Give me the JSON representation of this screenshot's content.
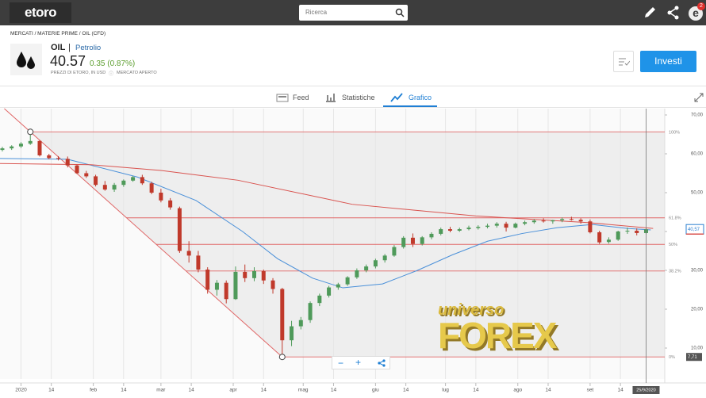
{
  "header": {
    "logo": "etoro",
    "search_placeholder": "Ricerca",
    "notification_count": "2",
    "avatar": "e"
  },
  "breadcrumb": "MERCATI / MATERIE PRIME / OIL (CFD)",
  "instrument": {
    "symbol": "OIL",
    "separator": "|",
    "name": "Petrolio",
    "price": "40.57",
    "change": "0.35 (0.87%)",
    "note": "PREZZI DI ETORO, IN USD",
    "status": "MERCATO APERTO",
    "invest_button": "Investi"
  },
  "tabs": [
    "Feed",
    "Statistiche",
    "Grafico"
  ],
  "zoom_controls": [
    "−",
    "+"
  ],
  "watermark": {
    "top": "universo",
    "bottom": "FOREX"
  },
  "chart_data": {
    "type": "candlestick",
    "up_color": "#4f9a5a",
    "down_color": "#c0392b",
    "xlim": [
      -9,
      276
    ],
    "ylim": [
      2.04,
      71.63
    ],
    "xticks": [
      {
        "value": 0,
        "label": "2020"
      },
      {
        "value": 13,
        "label": "14"
      },
      {
        "value": 31,
        "label": "feb"
      },
      {
        "value": 44,
        "label": "14"
      },
      {
        "value": 60,
        "label": "mar"
      },
      {
        "value": 73,
        "label": "14"
      },
      {
        "value": 91,
        "label": "apr"
      },
      {
        "value": 104,
        "label": "14"
      },
      {
        "value": 121,
        "label": "mag"
      },
      {
        "value": 134,
        "label": "14"
      },
      {
        "value": 152,
        "label": "giu"
      },
      {
        "value": 165,
        "label": "14"
      },
      {
        "value": 182,
        "label": "lug"
      },
      {
        "value": 195,
        "label": "14"
      },
      {
        "value": 213,
        "label": "ago"
      },
      {
        "value": 226,
        "label": "14"
      },
      {
        "value": 244,
        "label": "set"
      },
      {
        "value": 257,
        "label": "14"
      }
    ],
    "yticks": [
      {
        "value": 10,
        "label": "10,00"
      },
      {
        "value": 20,
        "label": "20,00"
      },
      {
        "value": 30,
        "label": "30,00"
      },
      {
        "value": 40,
        "label": "40,00"
      },
      {
        "value": 50,
        "label": "50,00"
      },
      {
        "value": 60,
        "label": "60,00"
      },
      {
        "value": 70,
        "label": "70,00"
      }
    ],
    "grid": true,
    "last_price": {
      "value": 40.57,
      "label": "40,57"
    },
    "cursor_label": "25/9/2020",
    "candles": [
      {
        "x": -8,
        "open": 61.0,
        "high": 61.8,
        "low": 60.6,
        "close": 61.4
      },
      {
        "x": -4,
        "open": 61.4,
        "high": 62.2,
        "low": 61.0,
        "close": 61.9
      },
      {
        "x": 0,
        "open": 61.9,
        "high": 63.0,
        "low": 61.5,
        "close": 62.6
      },
      {
        "x": 4,
        "open": 62.6,
        "high": 65.65,
        "low": 62.3,
        "close": 63.3
      },
      {
        "x": 8,
        "open": 63.3,
        "high": 63.5,
        "low": 59.3,
        "close": 59.6
      },
      {
        "x": 12,
        "open": 59.6,
        "high": 60.0,
        "low": 58.6,
        "close": 58.9
      },
      {
        "x": 16,
        "open": 58.9,
        "high": 59.4,
        "low": 58.3,
        "close": 58.7
      },
      {
        "x": 20,
        "open": 58.7,
        "high": 59.3,
        "low": 56.5,
        "close": 57.0
      },
      {
        "x": 24,
        "open": 57.0,
        "high": 57.2,
        "low": 54.8,
        "close": 55.0
      },
      {
        "x": 28,
        "open": 55.0,
        "high": 55.6,
        "low": 53.8,
        "close": 54.2
      },
      {
        "x": 32,
        "open": 54.2,
        "high": 54.6,
        "low": 51.6,
        "close": 52.0
      },
      {
        "x": 36,
        "open": 52.0,
        "high": 53.0,
        "low": 50.5,
        "close": 50.8
      },
      {
        "x": 40,
        "open": 50.8,
        "high": 52.5,
        "low": 50.2,
        "close": 52.0
      },
      {
        "x": 44,
        "open": 52.0,
        "high": 53.4,
        "low": 51.5,
        "close": 53.1
      },
      {
        "x": 48,
        "open": 53.1,
        "high": 54.3,
        "low": 52.8,
        "close": 54.0
      },
      {
        "x": 52,
        "open": 54.0,
        "high": 54.6,
        "low": 52.0,
        "close": 52.4
      },
      {
        "x": 56,
        "open": 52.4,
        "high": 52.8,
        "low": 49.6,
        "close": 50.0
      },
      {
        "x": 60,
        "open": 50.0,
        "high": 51.0,
        "low": 47.5,
        "close": 48.0
      },
      {
        "x": 64,
        "open": 48.0,
        "high": 48.6,
        "low": 45.6,
        "close": 46.2
      },
      {
        "x": 68,
        "open": 46.0,
        "high": 46.4,
        "low": 34.5,
        "close": 35.0
      },
      {
        "x": 72,
        "open": 35.0,
        "high": 37.5,
        "low": 32.0,
        "close": 33.8
      },
      {
        "x": 76,
        "open": 33.8,
        "high": 35.0,
        "low": 29.5,
        "close": 30.2
      },
      {
        "x": 80,
        "open": 30.2,
        "high": 30.8,
        "low": 24.0,
        "close": 25.0
      },
      {
        "x": 84,
        "open": 25.0,
        "high": 27.5,
        "low": 23.5,
        "close": 26.8
      },
      {
        "x": 88,
        "open": 26.8,
        "high": 27.4,
        "low": 21.5,
        "close": 22.6
      },
      {
        "x": 92,
        "open": 22.6,
        "high": 31.0,
        "low": 22.4,
        "close": 29.6
      },
      {
        "x": 96,
        "open": 29.6,
        "high": 31.5,
        "low": 27.0,
        "close": 28.0
      },
      {
        "x": 100,
        "open": 28.0,
        "high": 30.8,
        "low": 27.2,
        "close": 29.8
      },
      {
        "x": 104,
        "open": 29.8,
        "high": 30.2,
        "low": 26.5,
        "close": 27.4
      },
      {
        "x": 108,
        "open": 27.4,
        "high": 28.0,
        "low": 24.0,
        "close": 25.2
      },
      {
        "x": 112,
        "open": 25.2,
        "high": 25.5,
        "low": 7.71,
        "close": 12.0
      },
      {
        "x": 116,
        "open": 12.0,
        "high": 17.0,
        "low": 10.5,
        "close": 15.6
      },
      {
        "x": 120,
        "open": 15.6,
        "high": 18.0,
        "low": 14.8,
        "close": 17.2
      },
      {
        "x": 124,
        "open": 17.2,
        "high": 22.0,
        "low": 16.5,
        "close": 21.6
      },
      {
        "x": 128,
        "open": 21.6,
        "high": 24.0,
        "low": 20.8,
        "close": 23.5
      },
      {
        "x": 132,
        "open": 23.5,
        "high": 26.0,
        "low": 23.0,
        "close": 25.6
      },
      {
        "x": 136,
        "open": 25.6,
        "high": 26.8,
        "low": 25.0,
        "close": 26.4
      },
      {
        "x": 140,
        "open": 26.4,
        "high": 28.5,
        "low": 26.0,
        "close": 28.2
      },
      {
        "x": 144,
        "open": 28.2,
        "high": 30.5,
        "low": 27.8,
        "close": 30.0
      },
      {
        "x": 148,
        "open": 30.0,
        "high": 31.5,
        "low": 29.5,
        "close": 31.0
      },
      {
        "x": 152,
        "open": 31.0,
        "high": 33.0,
        "low": 30.5,
        "close": 32.6
      },
      {
        "x": 156,
        "open": 32.6,
        "high": 34.2,
        "low": 32.0,
        "close": 33.8
      },
      {
        "x": 160,
        "open": 33.8,
        "high": 36.5,
        "low": 33.5,
        "close": 36.0
      },
      {
        "x": 164,
        "open": 36.0,
        "high": 38.8,
        "low": 35.6,
        "close": 38.4
      },
      {
        "x": 168,
        "open": 38.4,
        "high": 39.5,
        "low": 36.0,
        "close": 36.8
      },
      {
        "x": 172,
        "open": 36.8,
        "high": 38.8,
        "low": 36.4,
        "close": 38.5
      },
      {
        "x": 176,
        "open": 38.5,
        "high": 39.8,
        "low": 38.0,
        "close": 39.4
      },
      {
        "x": 180,
        "open": 39.4,
        "high": 41.0,
        "low": 39.0,
        "close": 40.6
      },
      {
        "x": 184,
        "open": 40.6,
        "high": 41.2,
        "low": 39.8,
        "close": 40.2
      },
      {
        "x": 188,
        "open": 40.2,
        "high": 41.0,
        "low": 39.9,
        "close": 40.6
      },
      {
        "x": 192,
        "open": 40.6,
        "high": 41.5,
        "low": 40.3,
        "close": 41.0
      },
      {
        "x": 196,
        "open": 40.9,
        "high": 41.6,
        "low": 40.5,
        "close": 41.2
      },
      {
        "x": 200,
        "open": 41.2,
        "high": 42.0,
        "low": 40.8,
        "close": 41.5
      },
      {
        "x": 204,
        "open": 41.5,
        "high": 42.4,
        "low": 41.0,
        "close": 42.0
      },
      {
        "x": 208,
        "open": 42.0,
        "high": 42.5,
        "low": 40.0,
        "close": 41.0
      },
      {
        "x": 212,
        "open": 41.0,
        "high": 42.3,
        "low": 40.8,
        "close": 42.0
      },
      {
        "x": 216,
        "open": 42.0,
        "high": 42.8,
        "low": 41.6,
        "close": 42.4
      },
      {
        "x": 220,
        "open": 42.4,
        "high": 43.2,
        "low": 42.0,
        "close": 42.8
      },
      {
        "x": 224,
        "open": 42.8,
        "high": 43.4,
        "low": 42.3,
        "close": 42.6
      },
      {
        "x": 228,
        "open": 42.6,
        "high": 43.0,
        "low": 42.0,
        "close": 42.9
      },
      {
        "x": 232,
        "open": 42.9,
        "high": 43.6,
        "low": 42.4,
        "close": 43.2
      },
      {
        "x": 236,
        "open": 43.2,
        "high": 43.8,
        "low": 42.8,
        "close": 43.0
      },
      {
        "x": 240,
        "open": 43.0,
        "high": 43.4,
        "low": 42.0,
        "close": 42.6
      },
      {
        "x": 244,
        "open": 42.6,
        "high": 43.1,
        "low": 39.5,
        "close": 39.8
      },
      {
        "x": 248,
        "open": 39.8,
        "high": 40.2,
        "low": 36.8,
        "close": 37.2
      },
      {
        "x": 252,
        "open": 37.3,
        "high": 38.5,
        "low": 36.9,
        "close": 37.9
      },
      {
        "x": 256,
        "open": 37.9,
        "high": 40.2,
        "low": 37.6,
        "close": 40.0
      },
      {
        "x": 260,
        "open": 40.0,
        "high": 41.0,
        "low": 39.4,
        "close": 40.2
      },
      {
        "x": 264,
        "open": 40.2,
        "high": 40.8,
        "low": 39.0,
        "close": 39.6
      },
      {
        "x": 268,
        "open": 39.6,
        "high": 40.8,
        "low": 39.3,
        "close": 40.57
      }
    ],
    "moving_averages": [
      {
        "color": "#4a90d9",
        "x": [
          -9,
          20,
          50,
          75,
          95,
          110,
          125,
          138,
          155,
          170,
          185,
          200,
          215,
          230,
          245,
          260,
          270
        ],
        "values": [
          58.8,
          58.6,
          54,
          48,
          40,
          33,
          28,
          25.5,
          26.5,
          30,
          34,
          37.5,
          39.5,
          41,
          41.8,
          40.8,
          40.4
        ]
      },
      {
        "color": "#d9534f",
        "x": [
          -9,
          30,
          60,
          93,
          142,
          195,
          243,
          271
        ],
        "values": [
          57.5,
          57.2,
          55.7,
          53.2,
          47,
          44,
          42.3,
          40.8
        ]
      }
    ],
    "fibonacci": {
      "color": "#e06666",
      "anchors": {
        "x": [
          4,
          112
        ],
        "values": [
          65.65,
          7.71
        ]
      },
      "levels": [
        {
          "value": 65.65,
          "label": "100%"
        },
        {
          "value": 43.52,
          "label": "61.8%"
        },
        {
          "value": 36.68,
          "label": "50%"
        },
        {
          "value": 29.84,
          "label": "38.2%"
        },
        {
          "value": 7.71,
          "label": "0%",
          "axis_label": "7,71"
        }
      ]
    }
  }
}
